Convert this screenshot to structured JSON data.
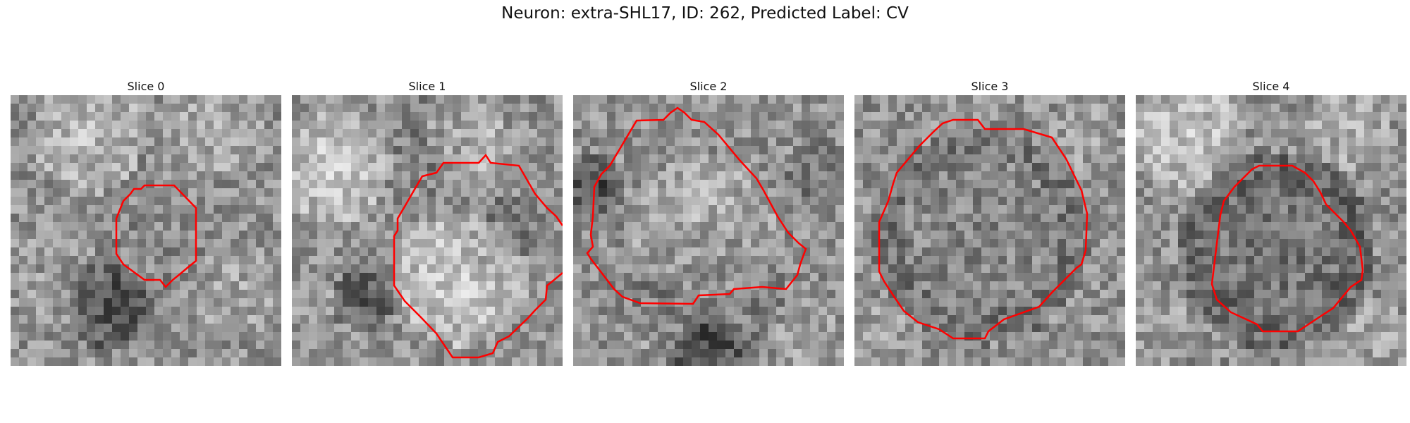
{
  "figure": {
    "title": "Neuron: extra-SHL17, ID: 262, Predicted Label: CV",
    "contour_color": "#ff0000",
    "colormap": "gray"
  },
  "panels": [
    {
      "title": "Slice 0"
    },
    {
      "title": "Slice 1"
    },
    {
      "title": "Slice 2"
    },
    {
      "title": "Slice 3"
    },
    {
      "title": "Slice 4"
    }
  ]
}
